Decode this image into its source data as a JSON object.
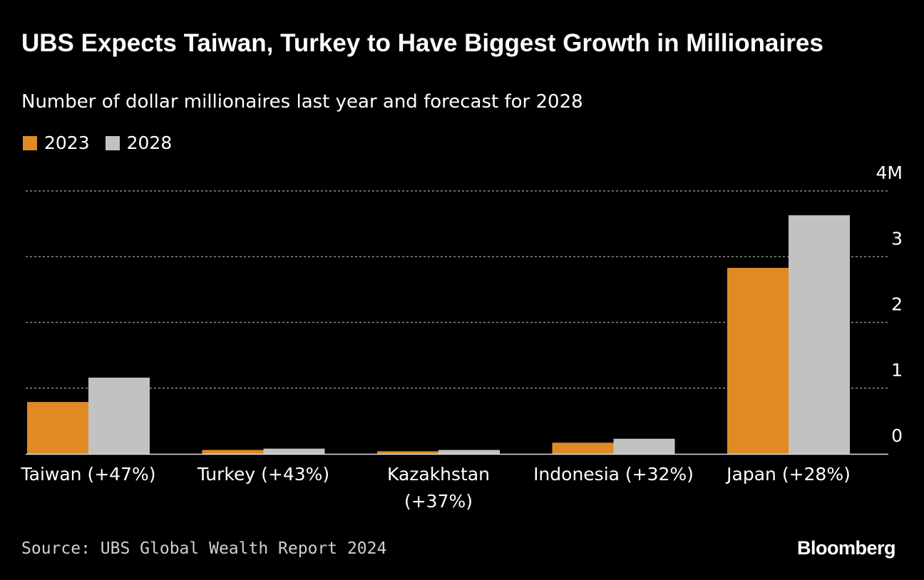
{
  "header": {
    "title": "UBS Expects Taiwan, Turkey to Have Biggest Growth in Millionaires",
    "subtitle": "Number of dollar millionaires last year and forecast for 2028"
  },
  "legend": {
    "items": [
      {
        "label": "2023",
        "color": "#e08a24"
      },
      {
        "label": "2028",
        "color": "#c2c2c2"
      }
    ]
  },
  "chart_data": {
    "type": "bar",
    "title": "UBS Expects Taiwan, Turkey to Have Biggest Growth in Millionaires",
    "subtitle": "Number of dollar millionaires last year and forecast for 2028",
    "categories": [
      "Taiwan (+47%)",
      "Turkey (+43%)",
      "Kazakhstan (+37%)",
      "Indonesia (+32%)",
      "Japan (+28%)"
    ],
    "category_lines": [
      [
        "Taiwan (+47%)"
      ],
      [
        "Turkey (+43%)"
      ],
      [
        "Kazakhstan",
        "(+37%)"
      ],
      [
        "Indonesia (+32%)"
      ],
      [
        "Japan (+28%)"
      ]
    ],
    "series": [
      {
        "name": "2023",
        "color": "#e08a24",
        "values": [
          0.79,
          0.06,
          0.04,
          0.17,
          2.83
        ]
      },
      {
        "name": "2028",
        "color": "#c2c2c2",
        "values": [
          1.16,
          0.08,
          0.06,
          0.23,
          3.63
        ]
      }
    ],
    "ylim": [
      0,
      4
    ],
    "yticks": [
      0,
      1,
      2,
      3,
      4
    ],
    "ytick_labels": [
      "0",
      "1",
      "2",
      "3",
      "4M"
    ],
    "grid": true,
    "xlabel": "",
    "ylabel": "",
    "legend_position": "top-left"
  },
  "footer": {
    "source": "Source: UBS Global Wealth Report 2024",
    "brand": "Bloomberg"
  }
}
